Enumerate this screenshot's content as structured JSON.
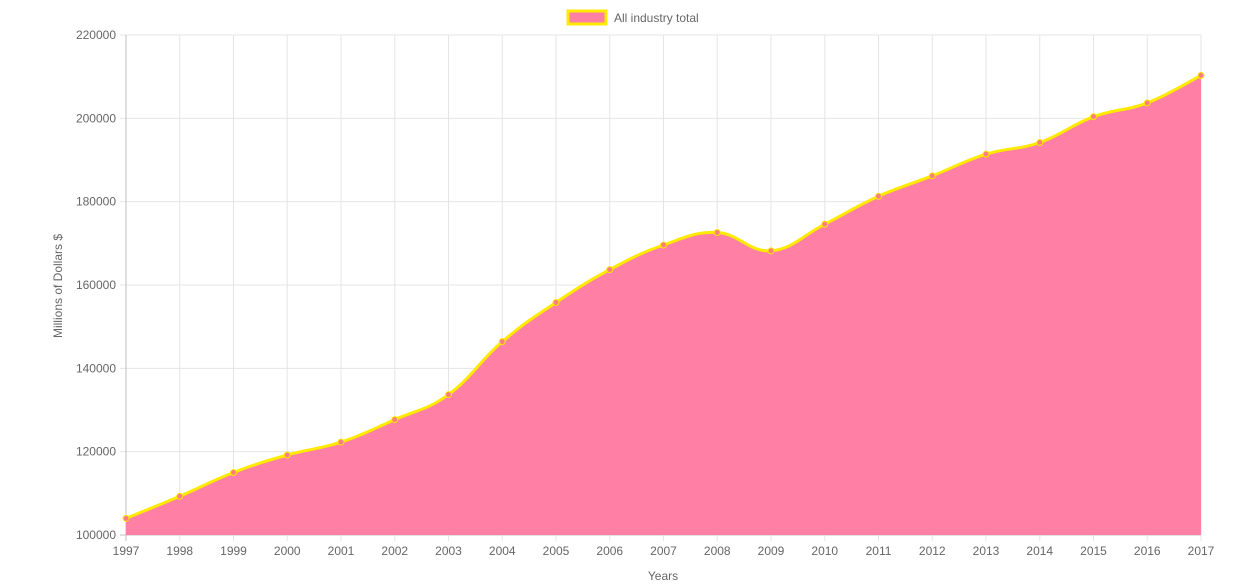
{
  "chart_data": {
    "type": "area",
    "xlabel": "Years",
    "ylabel": "Millions of Dollars $",
    "ylim": [
      100000,
      220000
    ],
    "yticks": [
      100000,
      120000,
      140000,
      160000,
      180000,
      200000,
      220000
    ],
    "categories": [
      "1997",
      "1998",
      "1999",
      "2000",
      "2001",
      "2002",
      "2003",
      "2004",
      "2005",
      "2006",
      "2007",
      "2008",
      "2009",
      "2010",
      "2011",
      "2012",
      "2013",
      "2014",
      "2015",
      "2016",
      "2017"
    ],
    "series": [
      {
        "name": "All industry total",
        "values": [
          104000,
          109300,
          115000,
          119200,
          122300,
          127700,
          133700,
          146400,
          155800,
          163700,
          169600,
          172600,
          168200,
          174600,
          181300,
          186200,
          191400,
          194200,
          200400,
          203700,
          210300
        ],
        "fill_color": "#ff80a4",
        "line_color": "#ffea00",
        "point_color": "#ff7f7f"
      }
    ],
    "legend_position": "top",
    "grid": true
  }
}
